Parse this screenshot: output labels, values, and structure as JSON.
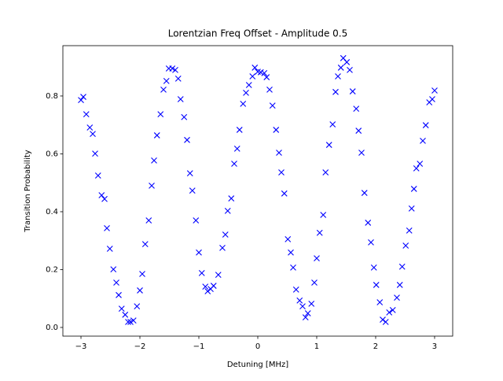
{
  "chart_data": {
    "type": "scatter",
    "title": "Lorentzian Freq Offset - Amplitude 0.5",
    "x_label": "Detuning [MHz]",
    "y_label": "Transition Probability",
    "marker": "x",
    "color": "#0000ff",
    "x": [
      -3.0,
      -2.96,
      -2.91,
      -2.85,
      -2.8,
      -2.76,
      -2.71,
      -2.65,
      -2.6,
      -2.56,
      -2.51,
      -2.45,
      -2.4,
      -2.36,
      -2.31,
      -2.25,
      -2.2,
      -2.16,
      -2.11,
      -2.05,
      -2.0,
      -1.96,
      -1.91,
      -1.85,
      -1.8,
      -1.76,
      -1.71,
      -1.65,
      -1.6,
      -1.55,
      -1.51,
      -1.45,
      -1.4,
      -1.35,
      -1.31,
      -1.25,
      -1.2,
      -1.15,
      -1.11,
      -1.05,
      -1.0,
      -0.95,
      -0.89,
      -0.85,
      -0.8,
      -0.75,
      -0.67,
      -0.6,
      -0.55,
      -0.51,
      -0.45,
      -0.4,
      -0.35,
      -0.31,
      -0.25,
      -0.2,
      -0.15,
      -0.09,
      -0.05,
      0.0,
      0.05,
      0.11,
      0.15,
      0.2,
      0.25,
      0.31,
      0.36,
      0.4,
      0.45,
      0.51,
      0.56,
      0.6,
      0.65,
      0.71,
      0.76,
      0.81,
      0.85,
      0.91,
      0.96,
      1.0,
      1.05,
      1.11,
      1.15,
      1.21,
      1.27,
      1.32,
      1.36,
      1.41,
      1.45,
      1.51,
      1.56,
      1.61,
      1.67,
      1.71,
      1.76,
      1.81,
      1.87,
      1.92,
      1.97,
      2.01,
      2.07,
      2.12,
      2.17,
      2.23,
      2.29,
      2.36,
      2.41,
      2.45,
      2.51,
      2.57,
      2.61,
      2.65,
      2.69,
      2.75,
      2.8,
      2.85,
      2.91,
      2.96,
      3.0
    ],
    "values": [
      0.786,
      0.797,
      0.737,
      0.691,
      0.669,
      0.601,
      0.525,
      0.457,
      0.444,
      0.343,
      0.272,
      0.201,
      0.155,
      0.112,
      0.065,
      0.044,
      0.019,
      0.019,
      0.024,
      0.073,
      0.128,
      0.185,
      0.288,
      0.37,
      0.49,
      0.577,
      0.664,
      0.737,
      0.822,
      0.852,
      0.895,
      0.895,
      0.89,
      0.86,
      0.789,
      0.727,
      0.648,
      0.533,
      0.473,
      0.37,
      0.259,
      0.188,
      0.141,
      0.125,
      0.133,
      0.144,
      0.182,
      0.275,
      0.321,
      0.403,
      0.446,
      0.566,
      0.618,
      0.683,
      0.773,
      0.811,
      0.838,
      0.868,
      0.898,
      0.884,
      0.882,
      0.879,
      0.865,
      0.822,
      0.767,
      0.683,
      0.604,
      0.536,
      0.463,
      0.305,
      0.259,
      0.207,
      0.131,
      0.093,
      0.073,
      0.035,
      0.049,
      0.082,
      0.155,
      0.239,
      0.327,
      0.389,
      0.536,
      0.631,
      0.702,
      0.814,
      0.868,
      0.898,
      0.931,
      0.917,
      0.89,
      0.816,
      0.756,
      0.68,
      0.604,
      0.465,
      0.362,
      0.294,
      0.207,
      0.147,
      0.087,
      0.027,
      0.019,
      0.052,
      0.06,
      0.103,
      0.147,
      0.21,
      0.283,
      0.335,
      0.411,
      0.479,
      0.55,
      0.566,
      0.645,
      0.699,
      0.778,
      0.789,
      0.819
    ],
    "xlim": [
      -3.307,
      3.307
    ],
    "ylim": [
      -0.03,
      0.974
    ],
    "xticks": [
      {
        "value": -3,
        "label": "−3"
      },
      {
        "value": -2,
        "label": "−2"
      },
      {
        "value": -1,
        "label": "−1"
      },
      0,
      1,
      2,
      3
    ],
    "yticks": [
      {
        "value": 0,
        "label": "0.0"
      },
      0.2,
      0.4,
      0.6,
      0.8
    ]
  }
}
